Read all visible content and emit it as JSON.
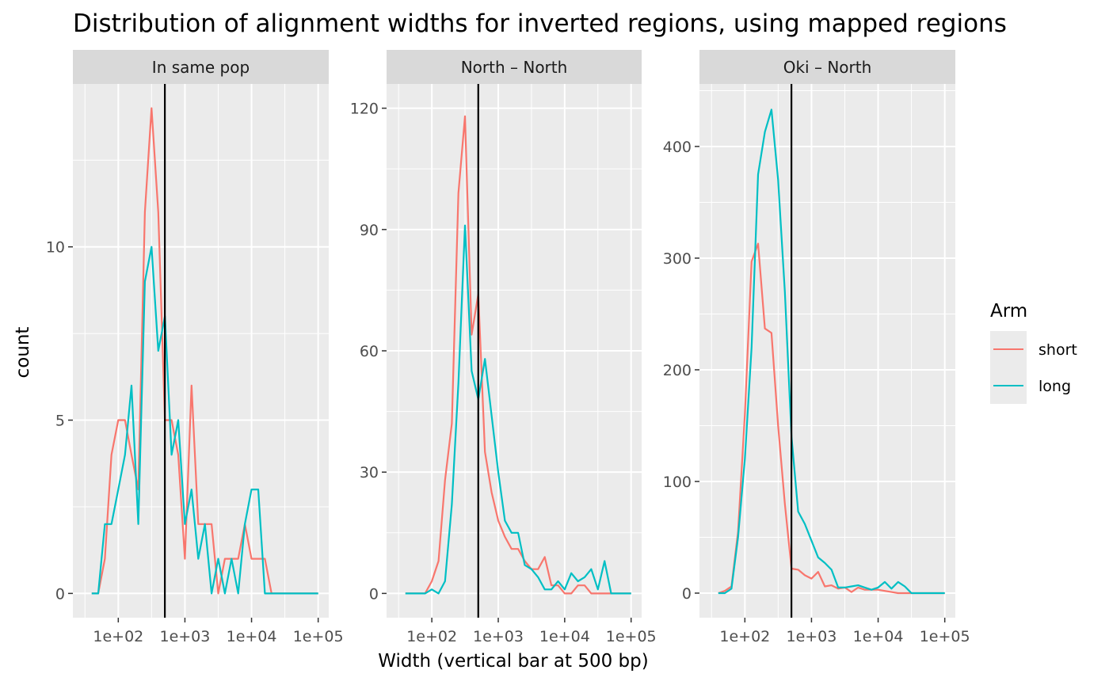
{
  "chart_data": {
    "type": "line",
    "title": "Distribution of alignment widths for inverted regions, using mapped regions",
    "xlabel": "Width (vertical bar at 500 bp)",
    "ylabel": "count",
    "x_scale": "log10",
    "xlim": [
      30,
      100000
    ],
    "x_ticks": [
      100,
      1000,
      10000,
      100000
    ],
    "x_tick_labels": [
      "1e+02",
      "1e+03",
      "1e+04",
      "1e+05"
    ],
    "vline": 500,
    "grid": true,
    "legend": {
      "title": "Arm",
      "placement": "right",
      "entries": [
        {
          "label": "short",
          "color": "#F8766D"
        },
        {
          "label": "long",
          "color": "#00BFC4"
        }
      ]
    },
    "panels": [
      {
        "strip": "In same pop",
        "ylim": [
          -0.7,
          14.7
        ],
        "y_ticks": [
          0,
          5,
          10
        ],
        "y_tick_labels": [
          "0",
          "5",
          "10"
        ],
        "series": [
          {
            "name": "short",
            "color": "#F8766D",
            "x": [
              40,
              50,
              63,
              79,
              100,
              126,
              158,
              200,
              251,
              316,
              398,
              501,
              631,
              794,
              1000,
              1259,
              1585,
              1995,
              2512,
              3162,
              3981,
              5012,
              6310,
              7943,
              10000,
              12589,
              15849,
              19953,
              25119,
              31623,
              39811,
              50119,
              63096,
              79433,
              100000
            ],
            "y": [
              0,
              0,
              1,
              4,
              5,
              5,
              4,
              3,
              11,
              14,
              11,
              5,
              5,
              4,
              1,
              6,
              2,
              2,
              2,
              0,
              1,
              1,
              1,
              2,
              1,
              1,
              1,
              0,
              0,
              0,
              0,
              0,
              0,
              0,
              0
            ]
          },
          {
            "name": "long",
            "color": "#00BFC4",
            "x": [
              40,
              50,
              63,
              79,
              100,
              126,
              158,
              200,
              251,
              316,
              398,
              501,
              631,
              794,
              1000,
              1259,
              1585,
              1995,
              2512,
              3162,
              3981,
              5012,
              6310,
              7943,
              10000,
              12589,
              15849,
              19953,
              25119,
              31623,
              39811,
              50119,
              63096,
              79433,
              100000
            ],
            "y": [
              0,
              0,
              2,
              2,
              3,
              4,
              6,
              2,
              9,
              10,
              7,
              8,
              4,
              5,
              2,
              3,
              1,
              2,
              0,
              1,
              0,
              1,
              0,
              2,
              3,
              3,
              0,
              0,
              0,
              0,
              0,
              0,
              0,
              0,
              0
            ]
          }
        ]
      },
      {
        "strip": "North – North",
        "ylim": [
          -6,
          126
        ],
        "y_ticks": [
          0,
          30,
          60,
          90,
          120
        ],
        "y_tick_labels": [
          "0",
          "30",
          "60",
          "90",
          "120"
        ],
        "series": [
          {
            "name": "short",
            "color": "#F8766D",
            "x": [
              40,
              50,
              63,
              79,
              100,
              126,
              158,
              200,
              251,
              316,
              398,
              501,
              631,
              794,
              1000,
              1259,
              1585,
              1995,
              2512,
              3162,
              3981,
              5012,
              6310,
              7943,
              10000,
              12589,
              15849,
              19953,
              25119,
              31623,
              39811,
              50119,
              63096,
              79433,
              100000
            ],
            "y": [
              0,
              0,
              0,
              0,
              3,
              8,
              28,
              42,
              99,
              118,
              64,
              74,
              35,
              25,
              18,
              14,
              11,
              11,
              8,
              6,
              6,
              9,
              2,
              2,
              0,
              0,
              2,
              2,
              0,
              0,
              0,
              0,
              0,
              0,
              0
            ]
          },
          {
            "name": "long",
            "color": "#00BFC4",
            "x": [
              40,
              50,
              63,
              79,
              100,
              126,
              158,
              200,
              251,
              316,
              398,
              501,
              631,
              794,
              1000,
              1259,
              1585,
              1995,
              2512,
              3162,
              3981,
              5012,
              6310,
              7943,
              10000,
              12589,
              15849,
              19953,
              25119,
              31623,
              39811,
              50119,
              63096,
              79433,
              100000
            ],
            "y": [
              0,
              0,
              0,
              0,
              1,
              0,
              3,
              22,
              52,
              91,
              55,
              48,
              58,
              44,
              30,
              18,
              15,
              15,
              7,
              6,
              4,
              1,
              1,
              3,
              1,
              5,
              3,
              4,
              6,
              1,
              8,
              0,
              0,
              0,
              0
            ]
          }
        ]
      },
      {
        "strip": "Oki – North",
        "ylim": [
          -22,
          456
        ],
        "y_ticks": [
          0,
          100,
          200,
          300,
          400
        ],
        "y_tick_labels": [
          "0",
          "100",
          "200",
          "300",
          "400"
        ],
        "series": [
          {
            "name": "short",
            "color": "#F8766D",
            "x": [
              40,
              50,
              63,
              79,
              100,
              126,
              158,
              200,
              251,
              316,
              398,
              501,
              631,
              794,
              1000,
              1259,
              1585,
              1995,
              2512,
              3162,
              3981,
              5012,
              6310,
              7943,
              10000,
              12589,
              15849,
              19953,
              25119,
              31623,
              39811,
              50119,
              63096,
              79433,
              100000
            ],
            "y": [
              0,
              2,
              6,
              55,
              160,
              297,
              313,
              237,
              233,
              150,
              80,
              22,
              21,
              16,
              13,
              19,
              6,
              7,
              4,
              5,
              1,
              5,
              3,
              3,
              3,
              2,
              1,
              0,
              0,
              0,
              0,
              0,
              0,
              0,
              0
            ]
          },
          {
            "name": "long",
            "color": "#00BFC4",
            "x": [
              40,
              50,
              63,
              79,
              100,
              126,
              158,
              200,
              251,
              316,
              398,
              501,
              631,
              794,
              1000,
              1259,
              1585,
              1995,
              2512,
              3162,
              3981,
              5012,
              6310,
              7943,
              10000,
              12589,
              15849,
              19953,
              25119,
              31623,
              39811,
              50119,
              63096,
              79433,
              100000
            ],
            "y": [
              0,
              0,
              4,
              50,
              120,
              220,
              375,
              413,
              433,
              370,
              270,
              140,
              73,
              62,
              47,
              32,
              27,
              21,
              5,
              5,
              6,
              7,
              5,
              3,
              5,
              10,
              4,
              10,
              6,
              0,
              0,
              0,
              0,
              0,
              0
            ]
          }
        ]
      }
    ]
  }
}
